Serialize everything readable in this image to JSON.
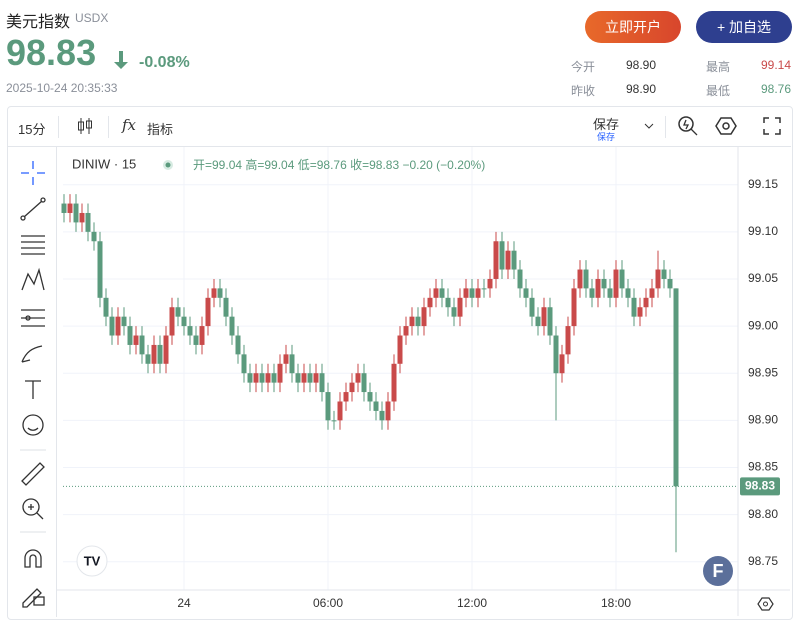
{
  "header": {
    "name": "美元指数",
    "code": "USDX",
    "price": "98.83",
    "change": "-0.08%",
    "time": "2025-10-24 20:35:33",
    "open_account": "立即开户",
    "add_watch": "+ 加自选",
    "stats": [
      {
        "label": "今开",
        "value": "98.90"
      },
      {
        "label": "最高",
        "value": "99.14"
      },
      {
        "label": "昨收",
        "value": "98.90"
      },
      {
        "label": "最低",
        "value": "98.76"
      }
    ]
  },
  "toolbar": {
    "interval": "15分",
    "indicators": "指标",
    "save": "保存",
    "save_sub": "保存"
  },
  "chart_data": {
    "type": "candlestick",
    "title": "DINIW · 15",
    "legend_text": "开=99.04  高=99.04  低=98.76  收=98.83  −0.20 (−0.20%)",
    "categories": [
      null,
      null,
      null,
      null,
      null,
      null,
      null,
      null,
      null,
      null,
      null,
      null,
      null,
      null,
      null,
      null,
      null,
      null,
      null,
      null,
      "24",
      null,
      null,
      null,
      null,
      null,
      null,
      null,
      null,
      null,
      null,
      null,
      null,
      null,
      null,
      null,
      null,
      null,
      null,
      null,
      null,
      null,
      null,
      null,
      "06:00",
      null,
      null,
      null,
      null,
      null,
      null,
      null,
      null,
      null,
      null,
      null,
      null,
      null,
      null,
      null,
      null,
      null,
      null,
      null,
      null,
      null,
      null,
      null,
      "12:00",
      null,
      null,
      null,
      null,
      null,
      null,
      null,
      null,
      null,
      null,
      null,
      null,
      null,
      null,
      null,
      null,
      null,
      null,
      null,
      null,
      null,
      null,
      null,
      "18:00",
      null,
      null,
      null,
      null,
      null,
      null,
      null,
      null,
      null,
      null
    ],
    "open": [
      99.13,
      99.12,
      99.13,
      99.11,
      99.12,
      99.1,
      99.09,
      99.03,
      99.01,
      98.99,
      99.01,
      99.0,
      98.98,
      98.99,
      98.97,
      98.96,
      98.98,
      98.96,
      98.99,
      99.02,
      99.01,
      99.0,
      98.99,
      98.98,
      99.0,
      99.03,
      99.04,
      99.03,
      99.01,
      98.99,
      98.97,
      98.95,
      98.94,
      98.95,
      98.94,
      98.95,
      98.94,
      98.96,
      98.97,
      98.95,
      98.94,
      98.95,
      98.94,
      98.95,
      98.93,
      98.9,
      98.9,
      98.92,
      98.93,
      98.94,
      98.95,
      98.93,
      98.92,
      98.91,
      98.9,
      98.92,
      98.96,
      98.99,
      99.0,
      99.01,
      99.0,
      99.02,
      99.03,
      99.04,
      99.03,
      99.02,
      99.01,
      99.03,
      99.04,
      99.03,
      99.04,
      99.04,
      99.05,
      99.09,
      99.06,
      99.08,
      99.06,
      99.04,
      99.03,
      99.01,
      99.0,
      99.02,
      98.99,
      98.95,
      98.97,
      99.0,
      99.04,
      99.06,
      99.04,
      99.03,
      99.05,
      99.04,
      99.03,
      99.06,
      99.04,
      99.03,
      99.01,
      99.02,
      99.03,
      99.04,
      99.06,
      99.05,
      99.04
    ],
    "high": [
      99.14,
      99.14,
      99.14,
      99.13,
      99.13,
      99.11,
      99.1,
      99.04,
      99.02,
      99.02,
      99.02,
      99.01,
      99.0,
      99.0,
      98.98,
      98.99,
      98.99,
      99.0,
      99.03,
      99.03,
      99.02,
      99.01,
      99.0,
      99.01,
      99.04,
      99.05,
      99.05,
      99.04,
      99.02,
      99.0,
      98.98,
      98.96,
      98.96,
      98.96,
      98.96,
      98.96,
      98.97,
      98.98,
      98.98,
      98.96,
      98.96,
      98.96,
      98.96,
      98.96,
      98.94,
      98.91,
      98.93,
      98.94,
      98.95,
      98.96,
      98.96,
      98.94,
      98.93,
      98.92,
      98.93,
      98.97,
      99.0,
      99.01,
      99.02,
      99.02,
      99.03,
      99.04,
      99.05,
      99.05,
      99.04,
      99.03,
      99.04,
      99.05,
      99.05,
      99.05,
      99.05,
      99.06,
      99.1,
      99.1,
      99.09,
      99.09,
      99.07,
      99.05,
      99.04,
      99.02,
      99.03,
      99.03,
      99.0,
      98.98,
      99.01,
      99.05,
      99.07,
      99.07,
      99.05,
      99.06,
      99.06,
      99.05,
      99.07,
      99.07,
      99.05,
      99.04,
      99.03,
      99.04,
      99.05,
      99.08,
      99.07,
      99.06,
      99.04
    ],
    "low": [
      99.11,
      99.11,
      99.1,
      99.1,
      99.09,
      99.08,
      99.02,
      99.0,
      98.98,
      98.98,
      98.99,
      98.97,
      98.97,
      98.96,
      98.95,
      98.95,
      98.95,
      98.95,
      98.98,
      99.0,
      98.99,
      98.98,
      98.97,
      98.97,
      98.99,
      99.02,
      99.02,
      99.0,
      98.98,
      98.96,
      98.94,
      98.93,
      98.93,
      98.93,
      98.93,
      98.93,
      98.93,
      98.95,
      98.94,
      98.93,
      98.93,
      98.93,
      98.93,
      98.92,
      98.89,
      98.89,
      98.89,
      98.91,
      98.92,
      98.93,
      98.92,
      98.91,
      98.9,
      98.89,
      98.89,
      98.91,
      98.95,
      98.98,
      98.99,
      98.99,
      98.99,
      99.01,
      99.02,
      99.02,
      99.01,
      99.0,
      99.0,
      99.02,
      99.02,
      99.02,
      99.03,
      99.03,
      99.04,
      99.05,
      99.05,
      99.05,
      99.03,
      99.02,
      99.0,
      98.99,
      98.99,
      98.98,
      98.9,
      98.94,
      98.96,
      98.99,
      99.03,
      99.03,
      99.02,
      99.02,
      99.03,
      99.02,
      99.02,
      99.03,
      99.02,
      99.0,
      99.0,
      99.01,
      99.02,
      99.03,
      99.04,
      99.03,
      98.76
    ],
    "close": [
      99.12,
      99.13,
      99.11,
      99.12,
      99.1,
      99.09,
      99.03,
      99.01,
      98.99,
      99.01,
      99.0,
      98.98,
      98.99,
      98.97,
      98.96,
      98.98,
      98.96,
      98.99,
      99.02,
      99.01,
      99.0,
      98.99,
      98.98,
      99.0,
      99.03,
      99.04,
      99.03,
      99.01,
      98.99,
      98.97,
      98.95,
      98.94,
      98.95,
      98.94,
      98.95,
      98.94,
      98.96,
      98.97,
      98.95,
      98.94,
      98.95,
      98.94,
      98.95,
      98.93,
      98.9,
      98.9,
      98.92,
      98.93,
      98.94,
      98.95,
      98.93,
      98.92,
      98.91,
      98.9,
      98.92,
      98.96,
      98.99,
      99.0,
      99.01,
      99.0,
      99.02,
      99.03,
      99.04,
      99.03,
      99.02,
      99.01,
      99.03,
      99.04,
      99.03,
      99.04,
      99.04,
      99.05,
      99.09,
      99.06,
      99.08,
      99.06,
      99.04,
      99.03,
      99.01,
      99.0,
      99.02,
      98.99,
      98.95,
      98.97,
      99.0,
      99.04,
      99.06,
      99.04,
      99.03,
      99.05,
      99.04,
      99.03,
      99.06,
      99.04,
      99.03,
      99.01,
      99.02,
      99.03,
      99.04,
      99.06,
      99.05,
      99.04,
      98.83
    ],
    "up_color": "#c94a4a",
    "down_color": "#5b9a7d",
    "ylim": [
      98.72,
      99.19
    ],
    "yticks": [
      98.75,
      {
        "value": 98.8,
        "label": "98.80"
      },
      98.85,
      {
        "value": 98.9,
        "label": "98.90"
      },
      98.95,
      {
        "value": 99,
        "label": "99.00"
      },
      99.05,
      {
        "value": 99.1,
        "label": "99.10"
      },
      99.15
    ],
    "grid": true,
    "last_price_line": true
  }
}
